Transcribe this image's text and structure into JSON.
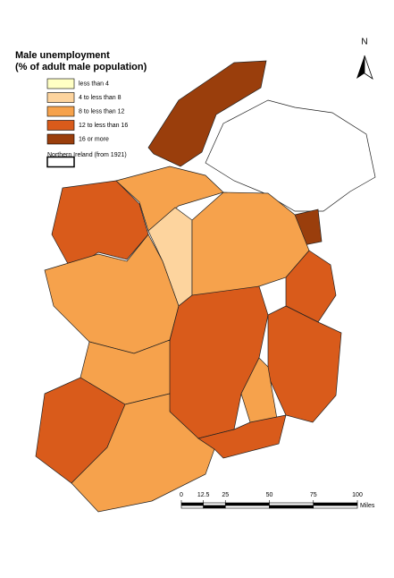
{
  "title": "Male unemployment",
  "subtitle": "(% of adult male population)",
  "legend": [
    {
      "label": "less than 4",
      "color": "#ffffc4"
    },
    {
      "label": "4 to less than 8",
      "color": "#fdd49e"
    },
    {
      "label": "8 to less than 12",
      "color": "#f6a24c"
    },
    {
      "label": "12 to less than 16",
      "color": "#d95b1b"
    },
    {
      "label": "16 or more",
      "color": "#9a3e0c"
    },
    {
      "label": "Northern Ireland (from 1921)",
      "color": "#ffffff"
    }
  ],
  "north_label": "N",
  "scale_bar": {
    "ticks": [
      0,
      12.5,
      25,
      50,
      75,
      100
    ],
    "unit": "Miles"
  }
}
